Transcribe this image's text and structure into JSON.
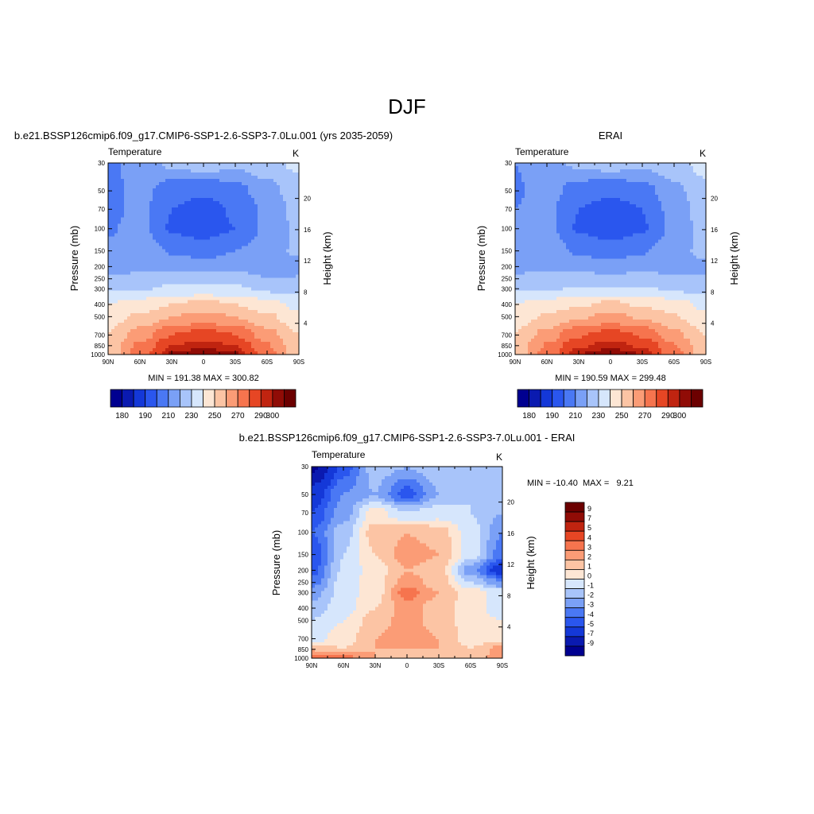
{
  "figure": {
    "title": "DJF"
  },
  "chart_data": [
    {
      "type": "heatmap",
      "panel": "model",
      "title": "b.e21.BSSP126cmip6.f09_g17.CMIP6-SSP1-2.6-SSP3-7.0Lu.001 (yrs 2035-2059)",
      "left_string": "Temperature",
      "right_string": "K",
      "ylabel": "Pressure (mb)",
      "y2label": "Height (km)",
      "xticks": [
        "90N",
        "60N",
        "30N",
        "0",
        "30S",
        "60S",
        "90S"
      ],
      "yticks": [
        "30",
        "50",
        "70",
        "100",
        "150",
        "200",
        "250",
        "300",
        "400",
        "500",
        "700",
        "850",
        "1000"
      ],
      "y2ticks": [
        "20",
        "16",
        "12",
        "8",
        "4"
      ],
      "minmax": "MIN = 191.38  MAX = 300.82",
      "min": 191.38,
      "max": 300.82,
      "colorbar_orientation": "horizontal",
      "colorbar_labels": [
        "180",
        "190",
        "210",
        "230",
        "250",
        "270",
        "290",
        "300"
      ],
      "levels": [
        180,
        185,
        190,
        200,
        210,
        220,
        230,
        240,
        250,
        260,
        270,
        280,
        290,
        295,
        300
      ],
      "colors": [
        "#000090",
        "#0a1ab0",
        "#1438d8",
        "#2a56ee",
        "#4a78f4",
        "#7aa0f6",
        "#a8c4fa",
        "#d6e6fc",
        "#fde6d4",
        "#fcc4a4",
        "#fb9c76",
        "#f6744e",
        "#e64624",
        "#c02410",
        "#900c06",
        "#6c0000"
      ],
      "latitudes": [
        90,
        60,
        30,
        0,
        -30,
        -60,
        -90
      ],
      "pressures": [
        30,
        50,
        70,
        100,
        150,
        200,
        250,
        300,
        400,
        500,
        700,
        850,
        1000
      ],
      "values": [
        [
          208,
          215,
          222,
          226,
          222,
          227,
          232
        ],
        [
          206,
          214,
          204,
          201,
          206,
          216,
          226
        ],
        [
          207,
          213,
          200,
          197,
          201,
          213,
          224
        ],
        [
          209,
          214,
          199,
          196,
          200,
          212,
          222
        ],
        [
          212,
          216,
          209,
          205,
          210,
          215,
          222
        ],
        [
          214,
          218,
          218,
          216,
          218,
          214,
          212
        ],
        [
          223,
          222,
          225,
          224,
          225,
          220,
          221
        ],
        [
          229,
          229,
          232,
          232,
          232,
          228,
          226
        ],
        [
          240,
          244,
          250,
          253,
          250,
          244,
          237
        ],
        [
          246,
          252,
          260,
          264,
          260,
          252,
          243
        ],
        [
          250,
          265,
          280,
          285,
          280,
          264,
          250
        ],
        [
          253,
          272,
          290,
          294,
          290,
          271,
          252
        ],
        [
          254,
          275,
          296,
          300,
          296,
          275,
          254
        ]
      ]
    },
    {
      "type": "heatmap",
      "panel": "obs",
      "title": "ERAI",
      "left_string": "Temperature",
      "right_string": "K",
      "ylabel": "Pressure (mb)",
      "y2label": "Height (km)",
      "xticks": [
        "90N",
        "60N",
        "30N",
        "0",
        "30S",
        "60S",
        "90S"
      ],
      "yticks": [
        "30",
        "50",
        "70",
        "100",
        "150",
        "200",
        "250",
        "300",
        "400",
        "500",
        "700",
        "850",
        "1000"
      ],
      "y2ticks": [
        "20",
        "16",
        "12",
        "8",
        "4"
      ],
      "minmax": "MIN = 190.59  MAX = 299.48",
      "min": 190.59,
      "max": 299.48,
      "colorbar_orientation": "horizontal",
      "colorbar_labels": [
        "180",
        "190",
        "210",
        "230",
        "250",
        "270",
        "290",
        "300"
      ],
      "levels": [
        180,
        185,
        190,
        200,
        210,
        220,
        230,
        240,
        250,
        260,
        270,
        280,
        290,
        295,
        300
      ],
      "colors": [
        "#000090",
        "#0a1ab0",
        "#1438d8",
        "#2a56ee",
        "#4a78f4",
        "#7aa0f6",
        "#a8c4fa",
        "#d6e6fc",
        "#fde6d4",
        "#fcc4a4",
        "#fb9c76",
        "#f6744e",
        "#e64624",
        "#c02410",
        "#900c06",
        "#6c0000"
      ],
      "latitudes": [
        90,
        60,
        30,
        0,
        -30,
        -60,
        -90
      ],
      "pressures": [
        30,
        50,
        70,
        100,
        150,
        200,
        250,
        300,
        400,
        500,
        700,
        850,
        1000
      ],
      "values": [
        [
          210,
          216,
          222,
          225,
          222,
          227,
          233
        ],
        [
          209,
          214,
          205,
          202,
          206,
          217,
          228
        ],
        [
          210,
          213,
          200,
          196,
          200,
          214,
          226
        ],
        [
          211,
          214,
          199,
          195,
          199,
          213,
          224
        ],
        [
          213,
          216,
          208,
          204,
          209,
          216,
          223
        ],
        [
          215,
          218,
          217,
          215,
          217,
          215,
          218
        ],
        [
          224,
          222,
          224,
          222,
          224,
          222,
          221
        ],
        [
          229,
          229,
          231,
          231,
          231,
          229,
          226
        ],
        [
          240,
          244,
          249,
          252,
          249,
          244,
          237
        ],
        [
          246,
          251,
          259,
          263,
          259,
          251,
          243
        ],
        [
          250,
          264,
          279,
          284,
          279,
          263,
          250
        ],
        [
          253,
          271,
          289,
          293,
          289,
          271,
          252
        ],
        [
          254,
          274,
          295,
          299,
          295,
          274,
          253
        ]
      ]
    },
    {
      "type": "heatmap",
      "panel": "difference",
      "title": "b.e21.BSSP126cmip6.f09_g17.CMIP6-SSP1-2.6-SSP3-7.0Lu.001 - ERAI",
      "left_string": "Temperature",
      "right_string": "K",
      "ylabel": "Pressure (mb)",
      "y2label": "Height (km)",
      "xticks": [
        "90N",
        "60N",
        "30N",
        "0",
        "30S",
        "60S",
        "90S"
      ],
      "yticks": [
        "30",
        "50",
        "70",
        "100",
        "150",
        "200",
        "250",
        "300",
        "400",
        "500",
        "700",
        "850",
        "1000"
      ],
      "y2ticks": [
        "20",
        "16",
        "12",
        "8",
        "4"
      ],
      "minmax": "MIN = -10.40  MAX =   9.21",
      "min": -10.4,
      "max": 9.21,
      "colorbar_orientation": "vertical",
      "colorbar_labels": [
        "9",
        "7",
        "5",
        "4",
        "3",
        "2",
        "1",
        "0",
        "-1",
        "-2",
        "-3",
        "-4",
        "-5",
        "-7",
        "-9"
      ],
      "levels": [
        -9,
        -7,
        -5,
        -4,
        -3,
        -2,
        -1,
        0,
        1,
        2,
        3,
        4,
        5,
        7,
        9
      ],
      "colors": [
        "#000090",
        "#0a1ab0",
        "#1438d8",
        "#2a56ee",
        "#4a78f4",
        "#7aa0f6",
        "#a8c4fa",
        "#d6e6fc",
        "#fde6d4",
        "#fcc4a4",
        "#fb9c76",
        "#f6744e",
        "#e64624",
        "#c02410",
        "#900c06",
        "#6c0000"
      ],
      "latitudes": [
        90,
        60,
        30,
        0,
        -30,
        -60,
        -90
      ],
      "pressures": [
        30,
        50,
        70,
        100,
        150,
        200,
        250,
        300,
        400,
        500,
        700,
        850,
        1000
      ],
      "values": [
        [
          -9.5,
          -4.5,
          -1.5,
          -2.0,
          -1.2,
          -1.8,
          -1.0
        ],
        [
          -6.0,
          -3.0,
          -2.0,
          -4.5,
          -2.0,
          -1.0,
          -1.5
        ],
        [
          -5.0,
          -2.5,
          0.5,
          -1.0,
          -0.5,
          -1.0,
          -2.0
        ],
        [
          -4.0,
          -1.5,
          1.5,
          2.0,
          1.5,
          -0.5,
          -3.0
        ],
        [
          -5.0,
          -1.0,
          1.0,
          2.5,
          2.0,
          -0.5,
          -3.5
        ],
        [
          -4.5,
          -0.8,
          0.5,
          2.0,
          1.5,
          -2.5,
          -6.0
        ],
        [
          -3.5,
          -0.5,
          0.5,
          2.5,
          1.5,
          -1.0,
          -3.0
        ],
        [
          -2.5,
          -0.5,
          0.5,
          3.5,
          2.0,
          0.5,
          -0.5
        ],
        [
          -1.5,
          -0.5,
          1.0,
          2.5,
          1.5,
          0.5,
          -0.5
        ],
        [
          -1.0,
          0.0,
          1.5,
          2.5,
          1.5,
          0.5,
          0.0
        ],
        [
          -0.5,
          0.5,
          2.0,
          2.5,
          2.0,
          0.5,
          0.5
        ],
        [
          2.0,
          1.0,
          2.0,
          2.0,
          2.0,
          1.0,
          2.5
        ],
        [
          4.0,
          3.5,
          2.0,
          1.5,
          1.5,
          1.0,
          3.0
        ]
      ]
    }
  ]
}
